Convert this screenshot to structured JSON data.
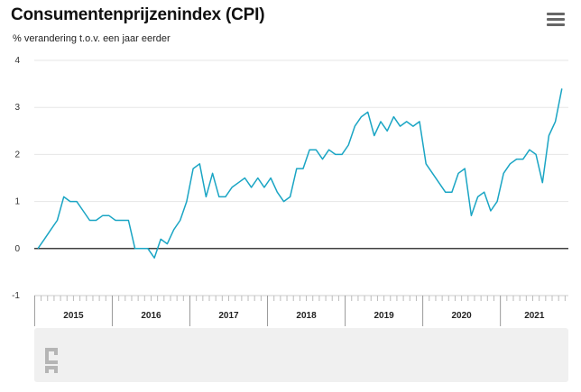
{
  "header": {
    "title": "Consumentenprijzenindex (CPI)",
    "subtitle": "% verandering t.o.v. een jaar eerder",
    "menu_icon": "hamburger-menu-icon"
  },
  "logo_icon": "cbs-logo-icon",
  "colors": {
    "line": "#1aa5c4",
    "grid": "#e6e6e6",
    "zero": "#000000",
    "navigator": "#f0f0f0"
  },
  "chart_data": {
    "type": "line",
    "title": "Consumentenprijzenindex (CPI)",
    "subtitle": "% verandering t.o.v. een jaar eerder",
    "ylim": [
      -1,
      4
    ],
    "yticks": [
      "4",
      "3",
      "2",
      "1",
      "0",
      "-1"
    ],
    "year_labels": [
      "2015",
      "2016",
      "2017",
      "2018",
      "2019",
      "2020",
      "2021"
    ],
    "grid": true,
    "x_start": "2015-01",
    "series": [
      {
        "values": [
          -0.0,
          0.2,
          0.4,
          0.6,
          1.1,
          1.0,
          1.0,
          0.8,
          0.6,
          0.6,
          0.7,
          0.7,
          0.6,
          0.6,
          0.6,
          0.0,
          0.0,
          0.0,
          -0.2,
          0.2,
          0.1,
          0.4,
          0.6,
          1.0,
          1.7,
          1.8,
          1.1,
          1.6,
          1.1,
          1.1,
          1.3,
          1.4,
          1.5,
          1.3,
          1.5,
          1.3,
          1.5,
          1.2,
          1.0,
          1.1,
          1.7,
          1.7,
          2.1,
          2.1,
          1.9,
          2.1,
          2.0,
          2.0,
          2.2,
          2.6,
          2.8,
          2.9,
          2.4,
          2.7,
          2.5,
          2.8,
          2.6,
          2.7,
          2.6,
          2.7,
          1.8,
          1.6,
          1.4,
          1.2,
          1.2,
          1.6,
          1.7,
          0.7,
          1.1,
          1.2,
          0.8,
          1.0,
          1.6,
          1.8,
          1.9,
          1.9,
          2.1,
          2.0,
          1.4,
          2.4,
          2.7,
          3.4
        ]
      }
    ]
  }
}
